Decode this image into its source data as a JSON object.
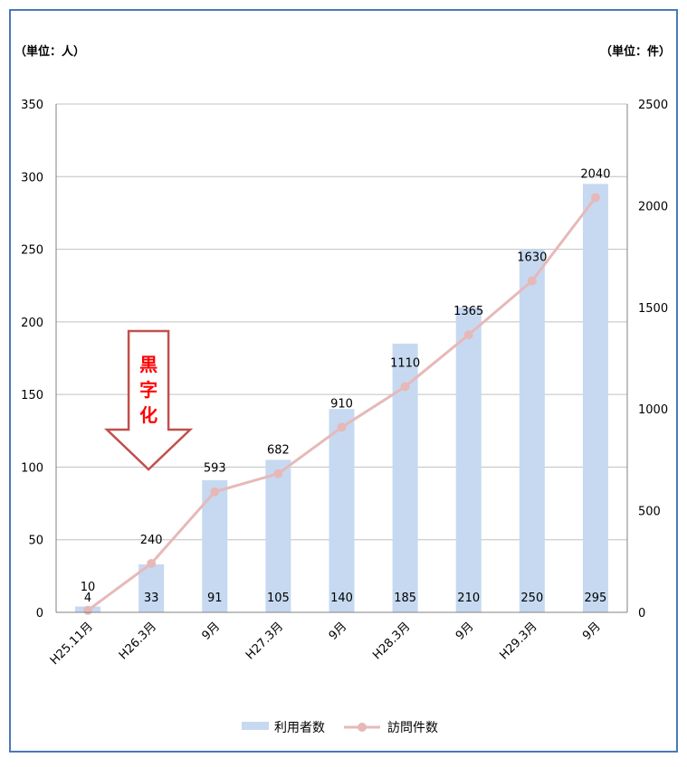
{
  "units": {
    "left": "（単位：人）",
    "right": "（単位：件）"
  },
  "annotation": {
    "label": "黒字化"
  },
  "colors": {
    "bar": "#c6d9f1",
    "line": "#e6b9b8",
    "grid": "#c0c0c0",
    "arrow": "#c0504d",
    "annotation_text": "#ff0000",
    "frame": "#4a7ab5"
  },
  "chart_data": {
    "type": "bar",
    "categories": [
      "H25.11月",
      "H26.3月",
      "9月",
      "H27.3月",
      "9月",
      "H28.3月",
      "9月",
      "H29.3月",
      "9月"
    ],
    "series": [
      {
        "name": "利用者数",
        "type": "bar",
        "axis": "left",
        "values": [
          4,
          33,
          91,
          105,
          140,
          185,
          210,
          250,
          295
        ]
      },
      {
        "name": "訪問件数",
        "type": "line",
        "axis": "right",
        "values": [
          10,
          240,
          593,
          682,
          910,
          1110,
          1365,
          1630,
          2040
        ]
      }
    ],
    "y_left": {
      "min": 0,
      "max": 350,
      "ticks": [
        0,
        50,
        100,
        150,
        200,
        250,
        300,
        350
      ]
    },
    "y_right": {
      "min": 0,
      "max": 2500,
      "ticks": [
        0,
        500,
        1000,
        1500,
        2000,
        2500
      ]
    },
    "grid": true,
    "legend": "bottom"
  }
}
